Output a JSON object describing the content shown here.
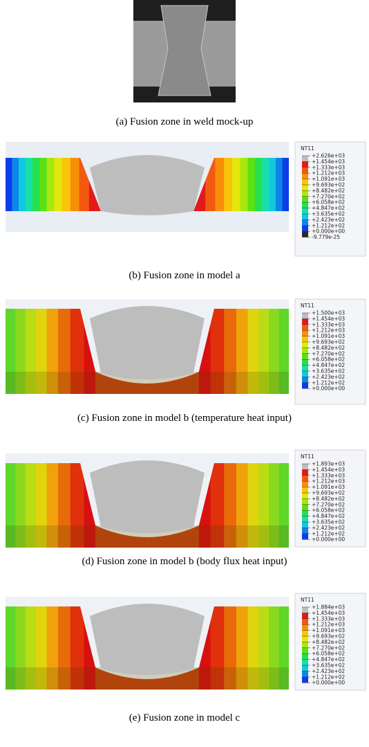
{
  "figure": {
    "panels": [
      {
        "caption": "(a) Fusion zone in weld mock-up"
      },
      {
        "caption": "(b) Fusion zone in model a",
        "legend": {
          "title": "NT11",
          "labels": [
            "+2.626e+03",
            "+1.454e+03",
            "+1.333e+03",
            "+1.212e+03",
            "+1.091e+03",
            "+9.693e+02",
            "+8.482e+02",
            "+7.270e+02",
            "+6.058e+02",
            "+4.847e+02",
            "+3.635e+02",
            "+2.423e+02",
            "+1.212e+02",
            "+0.000e+00",
            "-9.779e-25"
          ]
        }
      },
      {
        "caption": "(c) Fusion zone in model b (temperature heat input)",
        "legend": {
          "title": "NT11",
          "labels": [
            "+1.500e+03",
            "+1.454e+03",
            "+1.333e+03",
            "+1.212e+03",
            "+1.091e+03",
            "+9.693e+02",
            "+8.482e+02",
            "+7.270e+02",
            "+6.058e+02",
            "+4.847e+02",
            "+3.635e+02",
            "+2.423e+02",
            "+1.212e+02",
            "+0.000e+00"
          ]
        }
      },
      {
        "caption": "(d) Fusion zone in model b (body flux heat input)",
        "legend": {
          "title": "NT11",
          "labels": [
            "+1.893e+03",
            "+1.454e+03",
            "+1.333e+03",
            "+1.212e+03",
            "+1.091e+03",
            "+9.693e+02",
            "+8.482e+02",
            "+7.270e+02",
            "+6.058e+02",
            "+4.847e+02",
            "+3.635e+02",
            "+2.423e+02",
            "+1.212e+02",
            "+0.000e+00"
          ]
        }
      },
      {
        "caption": "(e) Fusion zone in model c",
        "legend": {
          "title": "NT11",
          "labels": [
            "+1.884e+03",
            "+1.454e+03",
            "+1.333e+03",
            "+1.212e+03",
            "+1.091e+03",
            "+9.693e+02",
            "+8.482e+02",
            "+7.270e+02",
            "+6.058e+02",
            "+4.847e+02",
            "+3.635e+02",
            "+2.423e+02",
            "+1.212e+02",
            "+0.000e+00"
          ]
        }
      }
    ]
  }
}
